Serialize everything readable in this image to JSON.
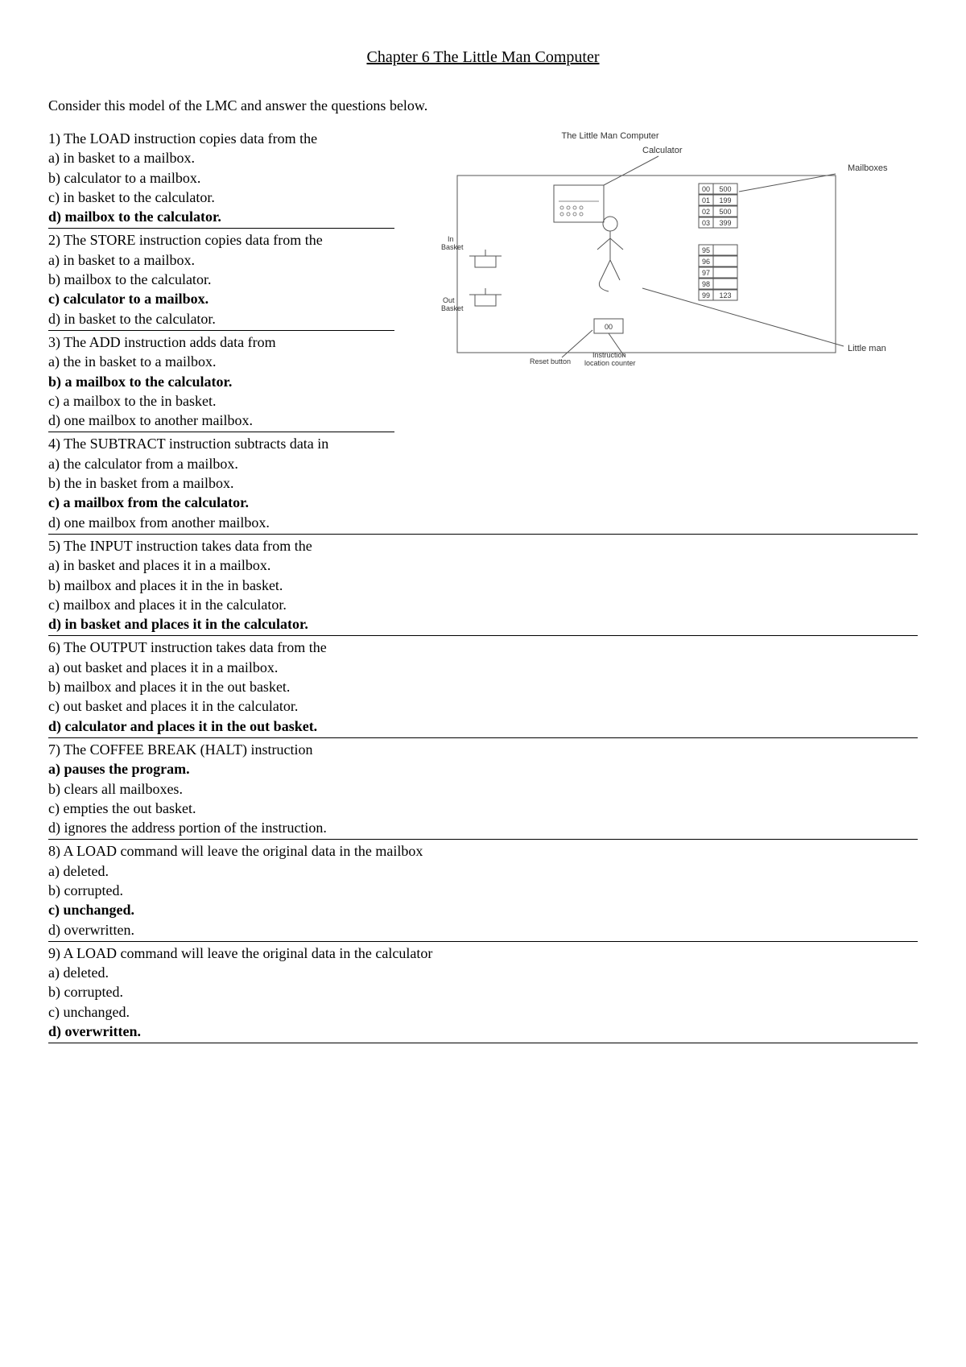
{
  "title": "Chapter 6 The Little Man Computer",
  "intro": "Consider this model of the LMC and answer the questions below.",
  "diagram": {
    "title": "The Little Man Computer",
    "labels": {
      "calculator": "Calculator",
      "mailboxes": "Mailboxes",
      "in_basket": "In\nBasket",
      "out_basket": "Out\nBasket",
      "reset_button": "Reset button",
      "instruction_counter": "Instruction\nlocation counter",
      "little_man": "Little man",
      "counter_value": "00"
    },
    "mailbox_rows_top": [
      {
        "addr": "00",
        "val": "500"
      },
      {
        "addr": "01",
        "val": "199"
      },
      {
        "addr": "02",
        "val": "500"
      },
      {
        "addr": "03",
        "val": "399"
      }
    ],
    "mailbox_rows_bottom": [
      {
        "addr": "95",
        "val": ""
      },
      {
        "addr": "96",
        "val": ""
      },
      {
        "addr": "97",
        "val": ""
      },
      {
        "addr": "98",
        "val": ""
      },
      {
        "addr": "99",
        "val": "123"
      }
    ]
  },
  "questions_left": [
    {
      "q": "1) The LOAD instruction copies data from the",
      "opts": [
        {
          "t": "a) in basket to a mailbox.",
          "b": false
        },
        {
          "t": "b) calculator to a mailbox.",
          "b": false
        },
        {
          "t": "c) in basket to the calculator.",
          "b": false
        },
        {
          "t": "d) mailbox to the calculator.",
          "b": true
        }
      ]
    },
    {
      "q": "2) The STORE instruction copies data from the",
      "opts": [
        {
          "t": "a) in basket to a mailbox.",
          "b": false
        },
        {
          "t": "b) mailbox to the calculator.",
          "b": false
        },
        {
          "t": "c) calculator to a mailbox.",
          "b": true
        },
        {
          "t": "d) in basket to the calculator.",
          "b": false
        }
      ]
    },
    {
      "q": "3) The ADD instruction adds data from",
      "opts": [
        {
          "t": "a) the in basket to a mailbox.",
          "b": false
        },
        {
          "t": "b) a mailbox to the calculator.",
          "b": true
        },
        {
          "t": "c) a mailbox to the in basket.",
          "b": false
        },
        {
          "t": "d) one mailbox to another mailbox.",
          "b": false
        }
      ]
    }
  ],
  "questions_full": [
    {
      "q": "4) The SUBTRACT instruction subtracts data in",
      "opts": [
        {
          "t": "a) the calculator from a mailbox.",
          "b": false
        },
        {
          "t": "b) the in basket from a mailbox.",
          "b": false
        },
        {
          "t": "c) a mailbox from the calculator.",
          "b": true
        },
        {
          "t": "d) one mailbox from another mailbox.",
          "b": false
        }
      ]
    },
    {
      "q": "5) The INPUT instruction takes data from the",
      "opts": [
        {
          "t": "a) in basket and places it in a mailbox.",
          "b": false
        },
        {
          "t": "b) mailbox and places it in the in basket.",
          "b": false
        },
        {
          "t": "c) mailbox and places it in the calculator.",
          "b": false
        },
        {
          "t": "d) in basket and places it in the calculator.",
          "b": true
        }
      ]
    },
    {
      "q": "6) The OUTPUT instruction takes data from the",
      "opts": [
        {
          "t": "a) out basket and places it in a mailbox.",
          "b": false
        },
        {
          "t": "b) mailbox and places it in the out basket.",
          "b": false
        },
        {
          "t": "c) out basket and places it in the calculator.",
          "b": false
        },
        {
          "t": "d) calculator and places it in the out basket.",
          "b": true
        }
      ]
    },
    {
      "q": "7) The COFFEE BREAK (HALT) instruction",
      "opts": [
        {
          "t": "a) pauses the program.",
          "b": true
        },
        {
          "t": "b) clears all mailboxes.",
          "b": false
        },
        {
          "t": "c) empties the out basket.",
          "b": false
        },
        {
          "t": "d) ignores the address portion of the instruction.",
          "b": false
        }
      ]
    },
    {
      "q": "8) A LOAD command will leave the original data in the mailbox",
      "opts": [
        {
          "t": "a) deleted.",
          "b": false
        },
        {
          "t": "b) corrupted.",
          "b": false
        },
        {
          "t": "c) unchanged.",
          "b": true
        },
        {
          "t": "d) overwritten.",
          "b": false
        }
      ]
    },
    {
      "q": "9) A LOAD command will leave the original data in the calculator",
      "opts": [
        {
          "t": "a) deleted.",
          "b": false
        },
        {
          "t": "b) corrupted.",
          "b": false
        },
        {
          "t": "c) unchanged.",
          "b": false
        },
        {
          "t": "d) overwritten.",
          "b": true
        }
      ]
    }
  ]
}
